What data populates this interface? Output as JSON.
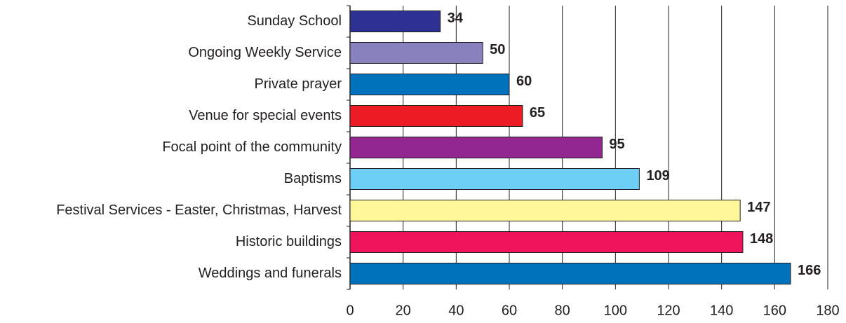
{
  "chart_data": {
    "type": "bar",
    "orientation": "horizontal",
    "categories": [
      "Sunday School",
      "Ongoing Weekly Service",
      "Private prayer",
      "Venue for special events",
      "Focal point of the community",
      "Baptisms",
      "Festival Services - Easter, Christmas, Harvest",
      "Historic buildings",
      "Weddings and funerals"
    ],
    "values": [
      34,
      50,
      60,
      65,
      95,
      109,
      147,
      148,
      166
    ],
    "colors": [
      "#2e3192",
      "#8781bd",
      "#0072bc",
      "#ed1c24",
      "#92278f",
      "#6dcff6",
      "#fff799",
      "#ed145b",
      "#0072bc"
    ],
    "xlim": [
      0,
      180
    ],
    "xticks": [
      0,
      20,
      40,
      60,
      80,
      100,
      120,
      140,
      160,
      180
    ],
    "grid": true
  }
}
